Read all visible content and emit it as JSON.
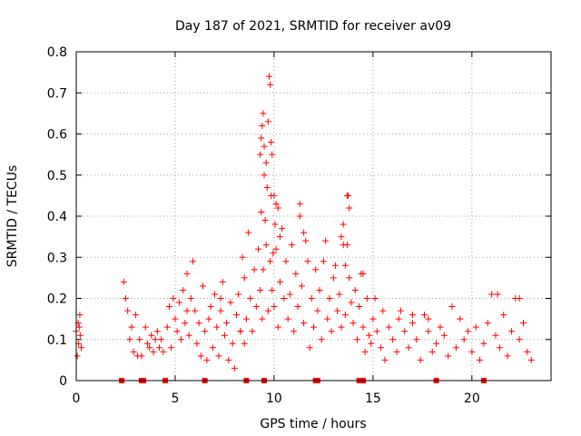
{
  "chart_data": {
    "type": "scatter",
    "title": "Day 187 of 2021, SRMTID for receiver av09",
    "xlabel": "GPS time / hours",
    "ylabel": "SRMTID / TECUs",
    "xlim": [
      0,
      24
    ],
    "ylim": [
      0,
      0.8
    ],
    "xticks": [
      0,
      5,
      10,
      15,
      20
    ],
    "yticks": [
      0,
      0.1,
      0.2,
      0.3,
      0.4,
      0.5,
      0.6,
      0.7,
      0.8
    ],
    "grid": true,
    "marker": "+",
    "color": "#ff0000",
    "series": [
      {
        "name": "SRMTID",
        "x": [
          0.0,
          0.05,
          0.1,
          0.12,
          0.15,
          0.18,
          0.2,
          0.25,
          2.4,
          2.5,
          2.6,
          2.7,
          2.8,
          2.9,
          3.0,
          3.1,
          3.2,
          3.3,
          3.5,
          3.6,
          3.7,
          3.8,
          3.9,
          4.0,
          4.1,
          4.2,
          4.3,
          4.4,
          4.6,
          4.7,
          4.8,
          4.9,
          5.0,
          5.1,
          5.2,
          5.3,
          5.4,
          5.5,
          5.6,
          5.7,
          5.8,
          5.9,
          6.0,
          6.1,
          6.2,
          6.3,
          6.4,
          6.5,
          6.6,
          6.7,
          6.8,
          6.9,
          7.0,
          7.1,
          7.2,
          7.3,
          7.4,
          7.5,
          7.6,
          7.7,
          7.8,
          7.9,
          8.0,
          8.1,
          8.2,
          8.3,
          8.4,
          8.5,
          8.6,
          8.7,
          8.8,
          8.9,
          9.0,
          9.1,
          9.2,
          9.3,
          9.35,
          9.4,
          9.45,
          9.5,
          9.55,
          9.6,
          9.7,
          9.8,
          9.85,
          9.9,
          9.95,
          10.0,
          10.1,
          10.2,
          10.3,
          10.4,
          10.5,
          10.6,
          10.7,
          10.8,
          10.9,
          11.0,
          11.1,
          11.2,
          11.3,
          11.4,
          11.5,
          11.6,
          11.7,
          11.8,
          11.9,
          12.0,
          12.1,
          12.2,
          12.3,
          12.4,
          12.5,
          12.6,
          12.7,
          12.8,
          12.9,
          13.0,
          13.1,
          13.2,
          13.3,
          13.4,
          13.5,
          13.6,
          13.7,
          13.8,
          13.9,
          14.0,
          14.1,
          14.2,
          14.3,
          14.4,
          14.5,
          14.6,
          14.7,
          14.8,
          14.9,
          15.0,
          15.2,
          15.4,
          15.6,
          15.8,
          16.0,
          16.2,
          16.4,
          16.6,
          16.8,
          17.0,
          17.2,
          17.4,
          17.6,
          17.8,
          18.0,
          18.2,
          18.4,
          18.6,
          18.8,
          19.0,
          19.2,
          19.4,
          19.6,
          19.8,
          20.0,
          20.2,
          20.4,
          20.6,
          20.8,
          21.0,
          21.2,
          21.4,
          21.6,
          21.8,
          22.0,
          22.2,
          22.4,
          22.6,
          22.8,
          23.0,
          9.3,
          9.35,
          9.4,
          9.45,
          9.5,
          9.6,
          9.65,
          9.7,
          9.75,
          9.8,
          9.85,
          9.9,
          10.0,
          10.05,
          10.1,
          10.2,
          10.3,
          11.3,
          11.5,
          13.4,
          13.5,
          13.6,
          13.7,
          13.75,
          13.8,
          14.5,
          15.1,
          15.5,
          16.3,
          17.0,
          17.8,
          21.3,
          22.4,
          5.6,
          7.3,
          8.3,
          8.5
        ],
        "y": [
          0.12,
          0.06,
          0.14,
          0.09,
          0.13,
          0.16,
          0.11,
          0.08,
          0.24,
          0.2,
          0.17,
          0.1,
          0.13,
          0.07,
          0.16,
          0.06,
          0.1,
          0.06,
          0.13,
          0.09,
          0.08,
          0.11,
          0.07,
          0.1,
          0.12,
          0.08,
          0.1,
          0.07,
          0.13,
          0.18,
          0.08,
          0.2,
          0.15,
          0.12,
          0.19,
          0.1,
          0.22,
          0.14,
          0.26,
          0.11,
          0.2,
          0.29,
          0.17,
          0.09,
          0.14,
          0.06,
          0.23,
          0.12,
          0.05,
          0.15,
          0.18,
          0.08,
          0.21,
          0.13,
          0.06,
          0.17,
          0.24,
          0.11,
          0.14,
          0.05,
          0.19,
          0.09,
          0.03,
          0.16,
          0.21,
          0.12,
          0.3,
          0.25,
          0.15,
          0.36,
          0.2,
          0.12,
          0.27,
          0.18,
          0.32,
          0.22,
          0.41,
          0.15,
          0.27,
          0.5,
          0.39,
          0.33,
          0.17,
          0.29,
          0.45,
          0.22,
          0.31,
          0.18,
          0.43,
          0.13,
          0.24,
          0.37,
          0.2,
          0.29,
          0.15,
          0.21,
          0.33,
          0.12,
          0.26,
          0.18,
          0.4,
          0.23,
          0.14,
          0.34,
          0.29,
          0.08,
          0.2,
          0.13,
          0.27,
          0.17,
          0.22,
          0.1,
          0.29,
          0.34,
          0.15,
          0.2,
          0.12,
          0.25,
          0.28,
          0.17,
          0.21,
          0.13,
          0.33,
          0.16,
          0.45,
          0.25,
          0.19,
          0.14,
          0.22,
          0.1,
          0.18,
          0.26,
          0.13,
          0.07,
          0.2,
          0.11,
          0.09,
          0.15,
          0.12,
          0.08,
          0.05,
          0.13,
          0.1,
          0.07,
          0.17,
          0.12,
          0.08,
          0.14,
          0.1,
          0.05,
          0.16,
          0.12,
          0.07,
          0.09,
          0.13,
          0.11,
          0.06,
          0.18,
          0.08,
          0.15,
          0.1,
          0.12,
          0.07,
          0.13,
          0.05,
          0.09,
          0.14,
          0.21,
          0.11,
          0.08,
          0.16,
          0.06,
          0.12,
          0.2,
          0.1,
          0.14,
          0.07,
          0.05,
          0.55,
          0.59,
          0.62,
          0.65,
          0.57,
          0.53,
          0.47,
          0.63,
          0.74,
          0.72,
          0.58,
          0.55,
          0.45,
          0.38,
          0.32,
          0.42,
          0.35,
          0.43,
          0.36,
          0.35,
          0.38,
          0.28,
          0.33,
          0.45,
          0.42,
          0.26,
          0.2,
          0.17,
          0.15,
          0.16,
          0.15,
          0.21,
          0.2,
          0.17,
          0.2,
          0.12,
          0.09
        ]
      }
    ],
    "gap_markers_x": [
      2.3,
      3.3,
      3.4,
      4.5,
      6.5,
      8.6,
      9.5,
      12.1,
      12.2,
      14.3,
      14.5,
      18.2,
      20.6
    ]
  }
}
